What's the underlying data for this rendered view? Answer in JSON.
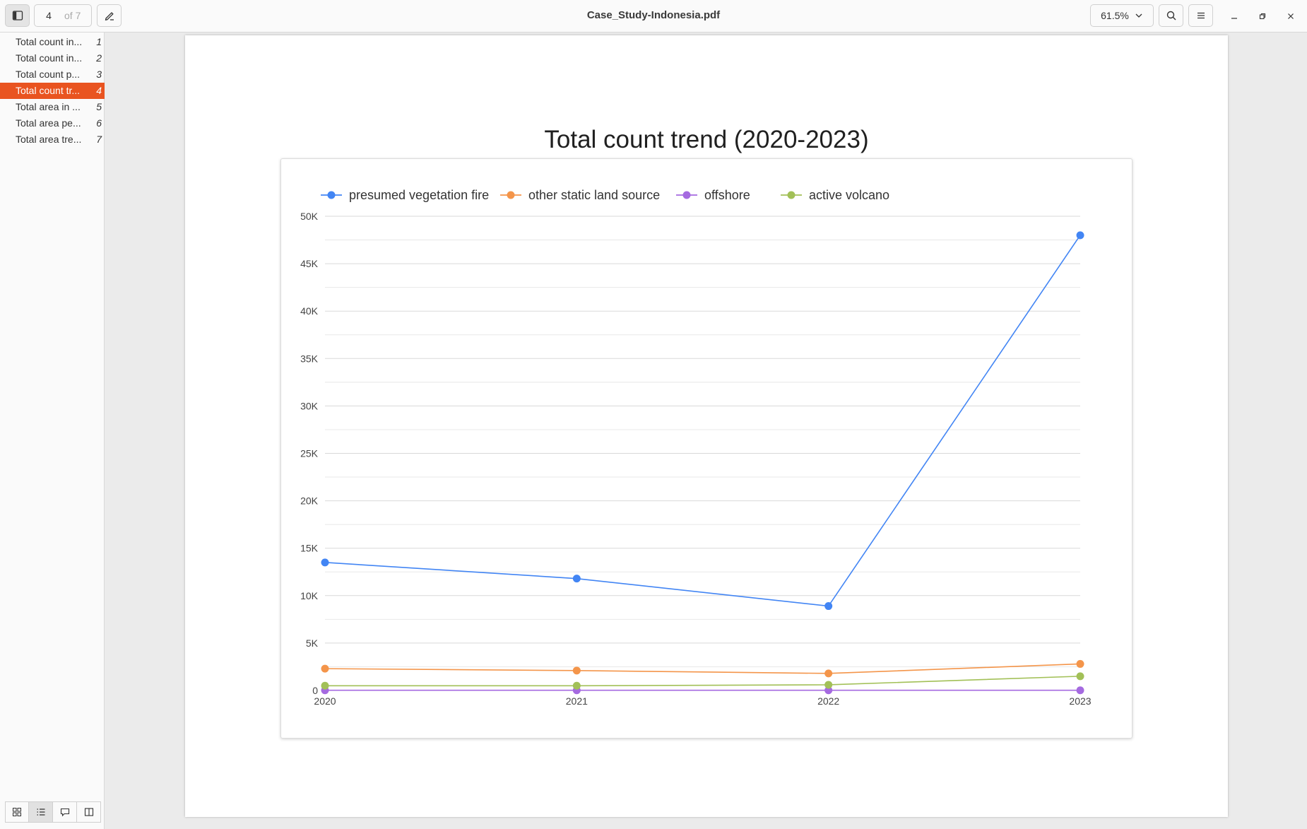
{
  "window": {
    "title": "Case_Study-Indonesia.pdf",
    "current_page": "4",
    "page_total_label": "of 7",
    "zoom": "61.5%"
  },
  "sidebar": {
    "items": [
      {
        "label": "Total count in...",
        "page": "1"
      },
      {
        "label": "Total count in...",
        "page": "2"
      },
      {
        "label": "Total count p...",
        "page": "3"
      },
      {
        "label": "Total count tr...",
        "page": "4",
        "selected": true
      },
      {
        "label": "Total area in ...",
        "page": "5"
      },
      {
        "label": "Total area pe...",
        "page": "6"
      },
      {
        "label": "Total area tre...",
        "page": "7"
      }
    ],
    "accent": "#e95420"
  },
  "chart_data": {
    "type": "line",
    "title": "Total count trend (2020-2023)",
    "x": [
      "2020",
      "2021",
      "2022",
      "2023"
    ],
    "series": [
      {
        "name": "presumed vegetation fire",
        "color": "#4285f4",
        "values": [
          13500,
          11800,
          8900,
          48000
        ]
      },
      {
        "name": "other static land source",
        "color": "#f4954a",
        "values": [
          2300,
          2100,
          1800,
          2800
        ]
      },
      {
        "name": "offshore",
        "color": "#a56ae0",
        "values": [
          20,
          20,
          20,
          20
        ]
      },
      {
        "name": "active volcano",
        "color": "#a2c057",
        "values": [
          500,
          500,
          600,
          1500
        ]
      }
    ],
    "ylim": [
      0,
      50000
    ],
    "yticks": [
      "0",
      "5K",
      "10K",
      "15K",
      "20K",
      "25K",
      "30K",
      "35K",
      "40K",
      "45K",
      "50K"
    ],
    "grid": true,
    "legend": "top-left"
  }
}
